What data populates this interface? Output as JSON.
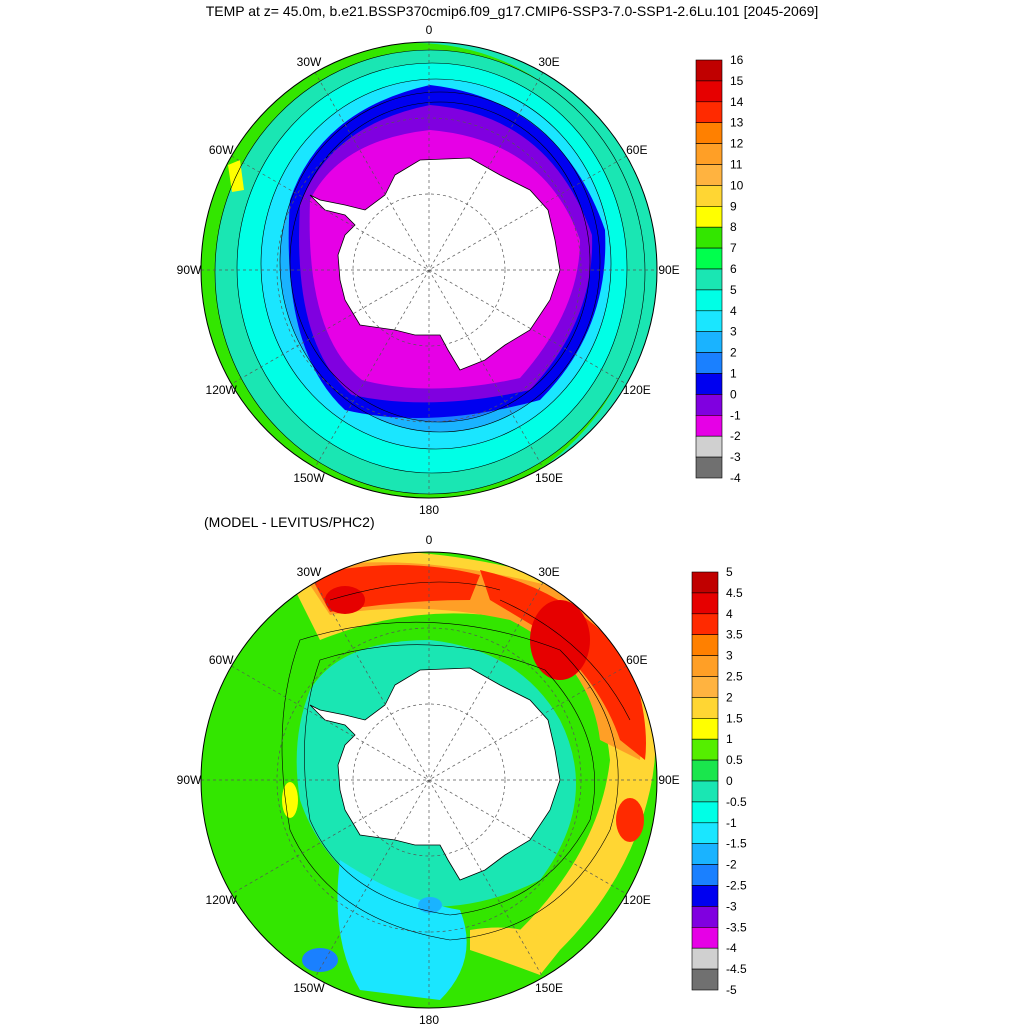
{
  "figure": {
    "title": "TEMP at z=  45.0m, b.e21.BSSP370cmip6.f09_g17.CMIP6-SSP3-7.0-SSP1-2.6Lu.101 [2045-2069]",
    "subtitle": "(MODEL - LEVITUS/PHC2)"
  },
  "longitude_labels": [
    "0",
    "30E",
    "60E",
    "90E",
    "120E",
    "150E",
    "180",
    "150W",
    "120W",
    "90W",
    "60W",
    "30W"
  ],
  "top_panel": {
    "colorbar_labels": [
      "16",
      "15",
      "14",
      "13",
      "12",
      "11",
      "10",
      "9",
      "8",
      "7",
      "6",
      "5",
      "4",
      "3",
      "2",
      "1",
      "0",
      "-1",
      "-2",
      "-3",
      "-4"
    ],
    "colors": [
      "#c00000",
      "#e60000",
      "#ff2a00",
      "#ff8000",
      "#ff9f26",
      "#ffb340",
      "#ffd633",
      "#ffff00",
      "#33e600",
      "#00ff4d",
      "#1ae6b3",
      "#00ffe6",
      "#1ae6ff",
      "#1ab3ff",
      "#1a80ff",
      "#0000f0",
      "#8000e0",
      "#e600e6",
      "#d0d0d0",
      "#707070"
    ]
  },
  "bottom_panel": {
    "colorbar_labels": [
      "5",
      "4.5",
      "4",
      "3.5",
      "3",
      "2.5",
      "2",
      "1.5",
      "1",
      "0.5",
      "0",
      "-0.5",
      "-1",
      "-1.5",
      "-2",
      "-2.5",
      "-3",
      "-3.5",
      "-4",
      "-4.5",
      "-5"
    ],
    "colors": [
      "#c00000",
      "#e60000",
      "#ff2a00",
      "#ff8000",
      "#ff9f26",
      "#ffb340",
      "#ffd633",
      "#ffff00",
      "#55ee00",
      "#1ae64d",
      "#1ae6b3",
      "#00ffe6",
      "#1ae6ff",
      "#1ab3ff",
      "#1a80ff",
      "#0000f0",
      "#8000e0",
      "#e600e6",
      "#d0d0d0",
      "#707070"
    ]
  }
}
